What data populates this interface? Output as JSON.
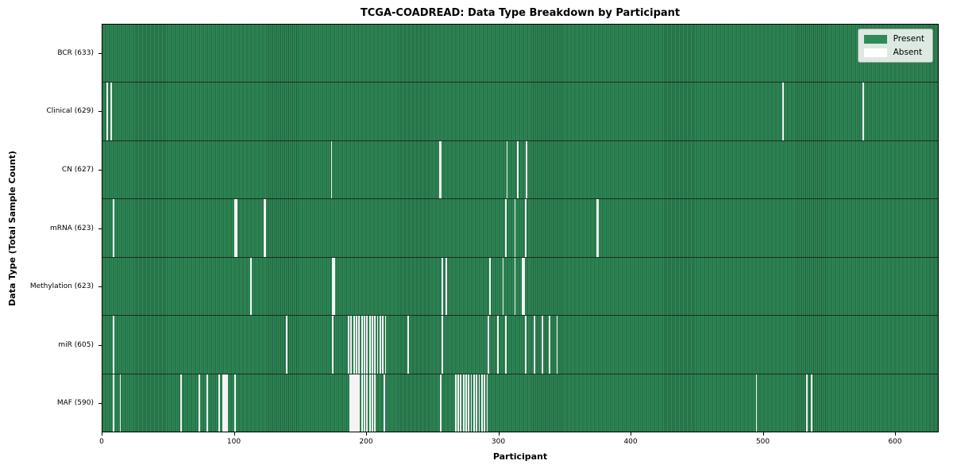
{
  "chart_data": {
    "type": "heatmap",
    "title": "TCGA-COADREAD: Data Type Breakdown by Participant",
    "xlabel": "Participant",
    "ylabel": "Data Type (Total Sample Count)",
    "x_ticks": [
      0,
      100,
      200,
      300,
      400,
      500,
      600
    ],
    "x_max": 633,
    "grid": false,
    "legend_position": "upper right",
    "colors": {
      "present": "#2e8b57",
      "present_edge": "#235c3c",
      "absent": "#f4f4f4",
      "row_separator": "#1c2b22"
    },
    "legend": [
      {
        "key": "present",
        "label": "Present",
        "color": "#2e8b57"
      },
      {
        "key": "absent",
        "label": "Absent",
        "color": "#ffffff"
      }
    ],
    "rows": [
      {
        "key": "bcr",
        "label": "BCR (633)",
        "total_samples": 633,
        "absent_participants": []
      },
      {
        "key": "clinical",
        "label": "Clinical (629)",
        "total_samples": 629,
        "absent_participants": [
          3,
          6,
          515,
          576
        ]
      },
      {
        "key": "cn",
        "label": "CN (627)",
        "total_samples": 627,
        "absent_participants": [
          173,
          255,
          256,
          306,
          314,
          321
        ]
      },
      {
        "key": "mrna",
        "label": "mRNA (623)",
        "total_samples": 623,
        "absent_participants": [
          8,
          100,
          101,
          122,
          123,
          305,
          312,
          320,
          374,
          375
        ]
      },
      {
        "key": "methylation",
        "label": "Methylation (623)",
        "total_samples": 623,
        "absent_participants": [
          112,
          174,
          175,
          257,
          260,
          293,
          303,
          312,
          318,
          319
        ]
      },
      {
        "key": "mir",
        "label": "miR (605)",
        "total_samples": 605,
        "absent_participants": [
          8,
          139,
          174,
          186,
          188,
          190,
          192,
          194,
          196,
          198,
          200,
          202,
          204,
          206,
          208,
          210,
          212,
          214,
          231,
          257,
          292,
          299,
          305,
          320,
          327,
          333,
          338,
          344
        ]
      },
      {
        "key": "maf",
        "label": "MAF (590)",
        "total_samples": 590,
        "absent_participants": [
          8,
          13,
          59,
          73,
          79,
          88,
          91,
          92,
          93,
          94,
          100,
          187,
          188,
          189,
          190,
          191,
          192,
          193,
          194,
          196,
          198,
          200,
          202,
          204,
          206,
          213,
          256,
          267,
          269,
          271,
          273,
          275,
          277,
          279,
          281,
          283,
          285,
          287,
          289,
          291,
          495,
          533,
          537
        ]
      }
    ]
  }
}
